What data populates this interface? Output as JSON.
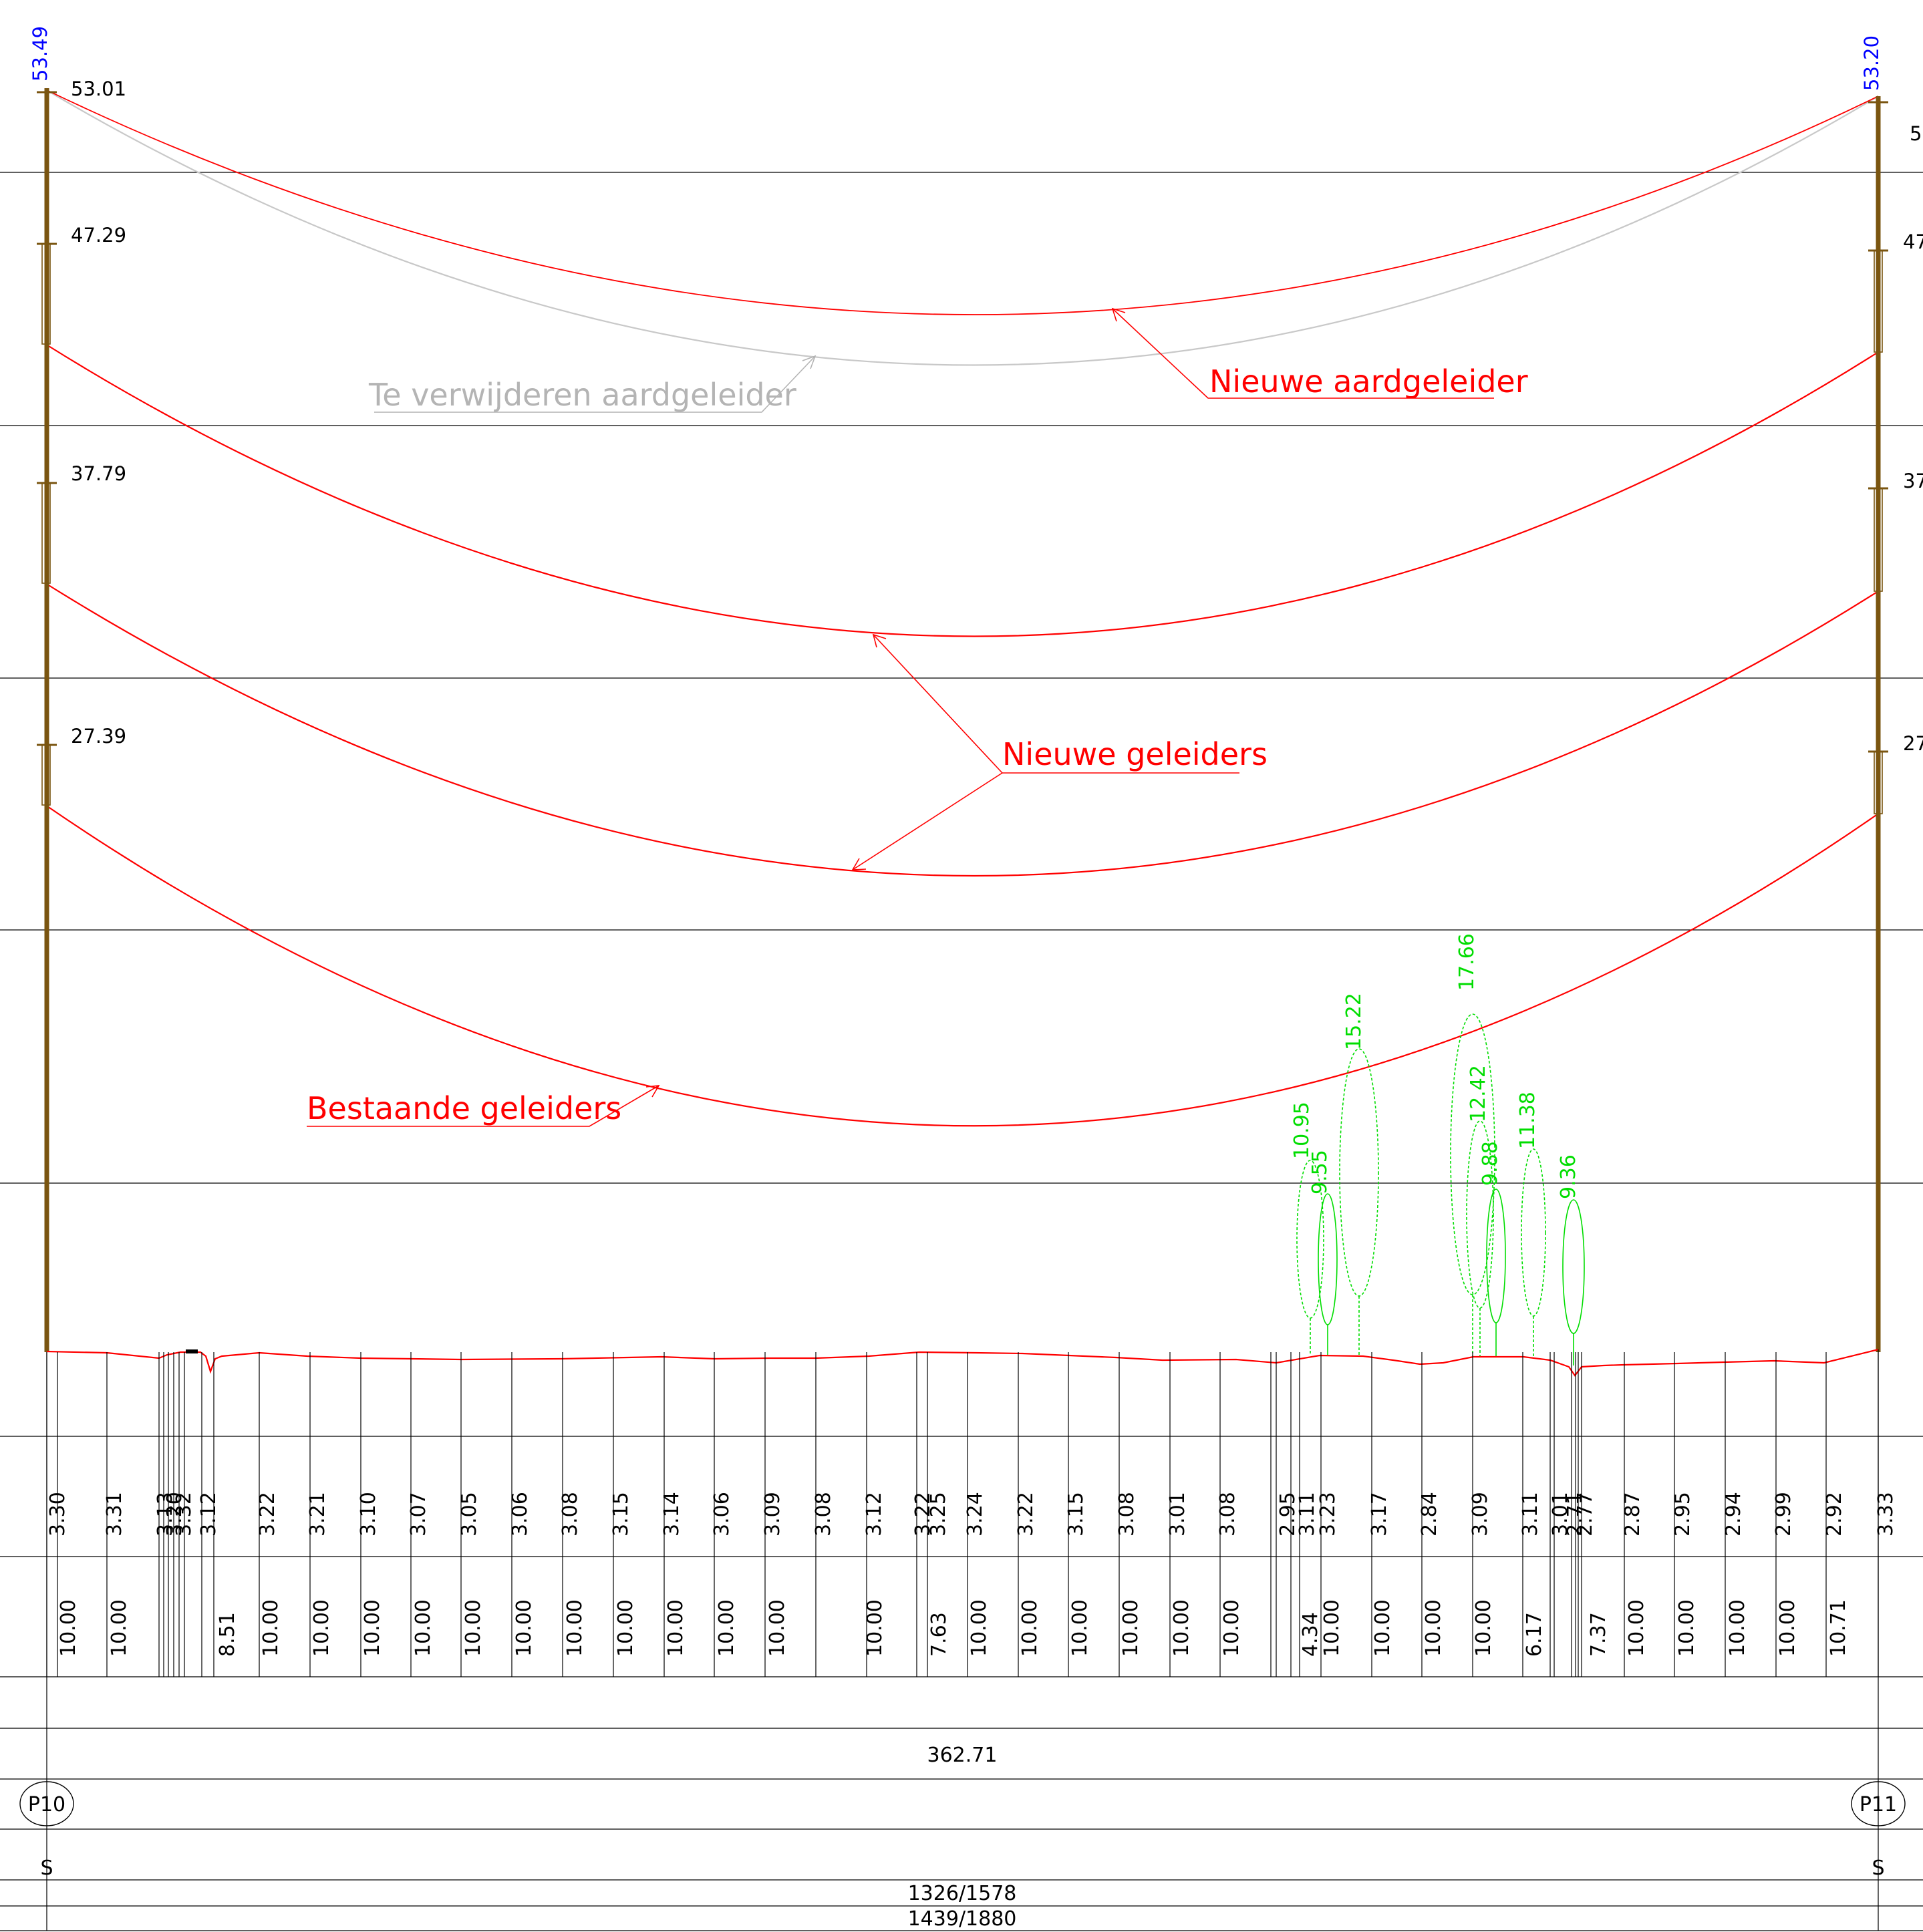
{
  "diagram": {
    "colors": {
      "tower": "#7a5510",
      "conductor": "#ff0000",
      "old_earth_wire": "#c8c8c8",
      "tree": "#00dd00",
      "top_label": "#0000ff",
      "grid": "#000000"
    },
    "towers": [
      {
        "id": "P10",
        "top_label": "53.49",
        "type_label": "S",
        "attachments": [
          "53.01",
          "47.29",
          "37.79",
          "27.39"
        ]
      },
      {
        "id": "P11",
        "top_label": "53.20",
        "type_label": "S",
        "attachments": [
          "5",
          "47",
          "37",
          "27"
        ]
      }
    ],
    "callouts": {
      "old_earth_wire": "Te verwijderen aardgeleider",
      "new_earth_wire": "Nieuwe aardgeleider",
      "new_conductors": "Nieuwe geleiders",
      "existing_conductors": "Bestaande geleiders"
    },
    "trees": [
      "10.95",
      "9.55",
      "15.22",
      "17.66",
      "12.42",
      "9.88",
      "11.38",
      "9.36"
    ],
    "ground_heights": [
      "3.30",
      "3.31",
      "3.13",
      "3.20",
      "3.32",
      "3.12",
      "3.22",
      "3.21",
      "3.10",
      "3.07",
      "3.05",
      "3.06",
      "3.08",
      "3.15",
      "3.14",
      "3.06",
      "3.09",
      "3.08",
      "3.12",
      "3.22",
      "3.25",
      "3.24",
      "3.22",
      "3.15",
      "3.08",
      "3.01",
      "3.08",
      "2.95",
      "3.11",
      "3.23",
      "3.17",
      "2.84",
      "3.09",
      "3.11",
      "3.01",
      "2.71",
      "2.77",
      "2.87",
      "2.95",
      "2.94",
      "2.99",
      "2.92",
      "3.33"
    ],
    "distances": [
      "10.00",
      "10.00",
      "8.51",
      "10.00",
      "10.00",
      "10.00",
      "10.00",
      "10.00",
      "10.00",
      "10.00",
      "10.00",
      "10.00",
      "10.00",
      "10.00",
      "10.00",
      "7.63",
      "10.00",
      "10.00",
      "10.00",
      "10.00",
      "10.00",
      "10.00",
      "4.34",
      "10.00",
      "10.00",
      "10.00",
      "10.00",
      "6.17",
      "7.37",
      "10.00",
      "10.00",
      "10.00",
      "10.00",
      "10.71"
    ],
    "span_length": "362.71",
    "parcel_row_1": "1326/1578",
    "parcel_row_2": "1439/1880"
  }
}
